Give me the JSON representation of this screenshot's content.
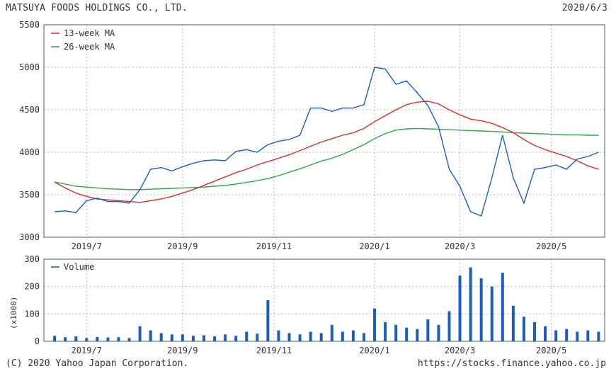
{
  "header": {
    "company": "MATSUYA FOODS HOLDINGS CO., LTD.",
    "date": "2020/6/3"
  },
  "footer": {
    "copyright": "(C) 2020 Yahoo Japan Corporation.",
    "url": "https://stocks.finance.yahoo.co.jp"
  },
  "colors": {
    "price": "#1a5ec4",
    "ma13": "#e02b2b",
    "ma26": "#2aa84a",
    "volume": "#1a5ec4",
    "grid": "#b8b8b8",
    "frame": "#555555"
  },
  "chart_data": [
    {
      "type": "line",
      "title": "",
      "x_dates": [
        "2019-06-10",
        "2019-06-17",
        "2019-06-24",
        "2019-07-01",
        "2019-07-08",
        "2019-07-15",
        "2019-07-22",
        "2019-07-29",
        "2019-08-05",
        "2019-08-12",
        "2019-08-19",
        "2019-08-26",
        "2019-09-02",
        "2019-09-09",
        "2019-09-16",
        "2019-09-23",
        "2019-09-30",
        "2019-10-07",
        "2019-10-14",
        "2019-10-21",
        "2019-10-28",
        "2019-11-04",
        "2019-11-11",
        "2019-11-18",
        "2019-11-25",
        "2019-12-02",
        "2019-12-09",
        "2019-12-16",
        "2019-12-23",
        "2019-12-30",
        "2020-01-06",
        "2020-01-13",
        "2020-01-20",
        "2020-01-27",
        "2020-02-03",
        "2020-02-10",
        "2020-02-17",
        "2020-02-24",
        "2020-03-02",
        "2020-03-09",
        "2020-03-16",
        "2020-03-23",
        "2020-03-30",
        "2020-04-06",
        "2020-04-13",
        "2020-04-20",
        "2020-04-27",
        "2020-05-04",
        "2020-05-11",
        "2020-05-18",
        "2020-05-25",
        "2020-06-01"
      ],
      "series": [
        {
          "name": "",
          "values": [
            3300,
            3310,
            3290,
            3430,
            3460,
            3420,
            3420,
            3400,
            3560,
            3800,
            3820,
            3780,
            3830,
            3870,
            3900,
            3910,
            3900,
            4010,
            4030,
            4000,
            4090,
            4130,
            4150,
            4200,
            4520,
            4520,
            4480,
            4520,
            4520,
            4560,
            5000,
            4980,
            4800,
            4840,
            4700,
            4550,
            4300,
            3800,
            3600,
            3300,
            3250,
            3700,
            4200,
            3700,
            3400,
            3800,
            3820,
            3850,
            3800,
            3920,
            3950,
            4000
          ]
        },
        {
          "name": "13-week MA",
          "values": [
            3650,
            3580,
            3520,
            3480,
            3450,
            3440,
            3430,
            3420,
            3410,
            3430,
            3450,
            3480,
            3520,
            3560,
            3610,
            3660,
            3710,
            3760,
            3800,
            3850,
            3890,
            3930,
            3970,
            4020,
            4070,
            4120,
            4160,
            4200,
            4230,
            4280,
            4360,
            4430,
            4500,
            4560,
            4590,
            4600,
            4570,
            4500,
            4440,
            4390,
            4370,
            4340,
            4290,
            4230,
            4150,
            4080,
            4030,
            3990,
            3950,
            3900,
            3840,
            3800
          ]
        },
        {
          "name": "26-week MA",
          "values": [
            3650,
            3625,
            3600,
            3590,
            3580,
            3570,
            3565,
            3560,
            3560,
            3565,
            3570,
            3575,
            3580,
            3585,
            3590,
            3600,
            3610,
            3625,
            3645,
            3665,
            3690,
            3725,
            3765,
            3805,
            3850,
            3895,
            3930,
            3975,
            4030,
            4090,
            4160,
            4220,
            4260,
            4275,
            4280,
            4275,
            4270,
            4265,
            4260,
            4255,
            4250,
            4245,
            4240,
            4230,
            4225,
            4220,
            4215,
            4210,
            4205,
            4205,
            4200,
            4200
          ]
        }
      ],
      "y_ticks": [
        "5500",
        "5000",
        "4500",
        "4000",
        "3500",
        "3000"
      ],
      "ylim": [
        3000,
        5500
      ],
      "x_ticks": [
        "2019/7",
        "2019/9",
        "2019/11",
        "2020/1",
        "2020/3",
        "2020/5"
      ],
      "grid": true,
      "legend_position": "top-left"
    },
    {
      "type": "bar",
      "title": "",
      "x_dates": [
        "2019-06-10",
        "2019-06-17",
        "2019-06-24",
        "2019-07-01",
        "2019-07-08",
        "2019-07-15",
        "2019-07-22",
        "2019-07-29",
        "2019-08-05",
        "2019-08-12",
        "2019-08-19",
        "2019-08-26",
        "2019-09-02",
        "2019-09-09",
        "2019-09-16",
        "2019-09-23",
        "2019-09-30",
        "2019-10-07",
        "2019-10-14",
        "2019-10-21",
        "2019-10-28",
        "2019-11-04",
        "2019-11-11",
        "2019-11-18",
        "2019-11-25",
        "2019-12-02",
        "2019-12-09",
        "2019-12-16",
        "2019-12-23",
        "2019-12-30",
        "2020-01-06",
        "2020-01-13",
        "2020-01-20",
        "2020-01-27",
        "2020-02-03",
        "2020-02-10",
        "2020-02-17",
        "2020-02-24",
        "2020-03-02",
        "2020-03-09",
        "2020-03-16",
        "2020-03-23",
        "2020-03-30",
        "2020-04-06",
        "2020-04-13",
        "2020-04-20",
        "2020-04-27",
        "2020-05-04",
        "2020-05-11",
        "2020-05-18",
        "2020-05-25",
        "2020-06-01"
      ],
      "series": [
        {
          "name": "Volume",
          "values": [
            20,
            15,
            18,
            12,
            16,
            14,
            15,
            12,
            55,
            40,
            30,
            25,
            25,
            20,
            22,
            18,
            25,
            20,
            35,
            28,
            150,
            40,
            30,
            25,
            35,
            30,
            60,
            35,
            40,
            30,
            120,
            70,
            60,
            50,
            45,
            80,
            60,
            110,
            240,
            270,
            230,
            200,
            250,
            130,
            90,
            70,
            55,
            40,
            45,
            35,
            40,
            35
          ]
        }
      ],
      "y_ticks": [
        "300",
        "200",
        "100",
        "0"
      ],
      "ylim": [
        0,
        300
      ],
      "ylabel": "(x1000)",
      "x_ticks": [
        "2019/7",
        "2019/9",
        "2019/11",
        "2020/1",
        "2020/3",
        "2020/5"
      ],
      "grid": true,
      "legend_position": "top-left"
    }
  ]
}
